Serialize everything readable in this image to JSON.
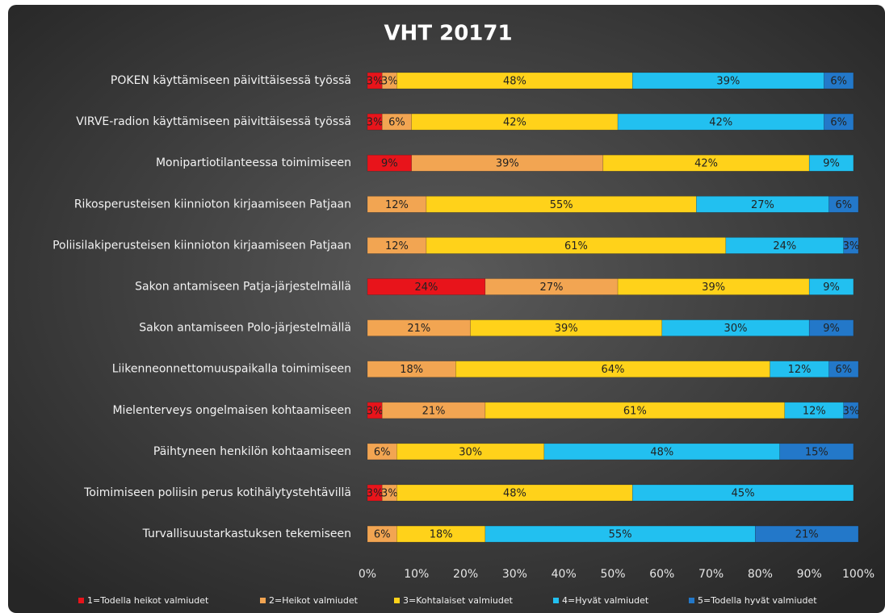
{
  "chart_data": {
    "type": "stacked_bar_horizontal",
    "title": "VHT 20171",
    "categories": [
      "POKEN käyttämiseen päivittäisessä työssä",
      "VIRVE-radion käyttämiseen päivittäisessä työssä",
      "Monipartiotilanteessa toimimiseen",
      "Rikosperusteisen kiinnioton kirjaamiseen Patjaan",
      "Poliisilakiperusteisen kiinnioton kirjaamiseen Patjaan",
      "Sakon antamiseen Patja-järjestelmällä",
      "Sakon antamiseen Polo-järjestelmällä",
      "Liikenneonnettomuuspaikalla toimimiseen",
      "Mielenterveys ongelmaisen kohtaamiseen",
      "Päihtyneen henkilön kohtaamiseen",
      "Toimimiseen poliisin perus kotihälytystehtävillä",
      "Turvallisuustarkastuksen tekemiseen"
    ],
    "series": [
      {
        "name": "1=Todella heikot valmiudet",
        "color": "#e8141b",
        "values": [
          3,
          3,
          9,
          null,
          null,
          24,
          null,
          null,
          3,
          null,
          3,
          null
        ],
        "value_labels": [
          "3%",
          "3%",
          "9%",
          null,
          null,
          "24%",
          null,
          null,
          "3%",
          null,
          "3%",
          null
        ]
      },
      {
        "name": "2=Heikot valmiudet",
        "color": "#f2a552",
        "values": [
          3,
          6,
          39,
          12,
          12,
          27,
          21,
          18,
          21,
          6,
          3,
          6
        ],
        "value_labels": [
          "3%",
          "6%",
          "39%",
          "12%",
          "12%",
          "27%",
          "21%",
          "18%",
          "21%",
          "6%",
          "3%",
          "6%"
        ]
      },
      {
        "name": "3=Kohtalaiset valmiudet",
        "color": "#ffd21a",
        "values": [
          48,
          42,
          42,
          55,
          61,
          39,
          39,
          64,
          61,
          30,
          48,
          18
        ],
        "value_labels": [
          "48%",
          "42%",
          "42%",
          "55%",
          "61%",
          "39%",
          "39%",
          "64%",
          "61%",
          "30%",
          "48%",
          "18%"
        ]
      },
      {
        "name": "4=Hyvät valmiudet",
        "color": "#22c0f0",
        "values": [
          39,
          42,
          9,
          27,
          24,
          9,
          30,
          12,
          12,
          48,
          45,
          55
        ],
        "value_labels": [
          "39%",
          "42%",
          "9%",
          "27%",
          "24%",
          "9%",
          "30%",
          "12%",
          "12%",
          "48%",
          "45%",
          "55%"
        ]
      },
      {
        "name": "5=Todella hyvät valmiudet",
        "color": "#2378c9",
        "values": [
          6,
          6,
          null,
          6,
          3,
          null,
          9,
          6,
          3,
          15,
          null,
          21
        ],
        "value_labels": [
          "6%",
          "6%",
          null,
          "6%",
          "3%",
          null,
          "9%",
          "6%",
          "3%",
          "15%",
          null,
          "21%"
        ]
      }
    ],
    "xlim": [
      0,
      100
    ],
    "xticks": [
      {
        "value": 0,
        "label": "0%"
      },
      {
        "value": 10,
        "label": "10%"
      },
      {
        "value": 20,
        "label": "20%"
      },
      {
        "value": 30,
        "label": "30%"
      },
      {
        "value": 40,
        "label": "40%"
      },
      {
        "value": 50,
        "label": "50%"
      },
      {
        "value": 60,
        "label": "60%"
      },
      {
        "value": 70,
        "label": "70%"
      },
      {
        "value": 80,
        "label": "80%"
      },
      {
        "value": 90,
        "label": "90%"
      },
      {
        "value": 100,
        "label": "100%"
      }
    ],
    "legend": "bottom"
  }
}
